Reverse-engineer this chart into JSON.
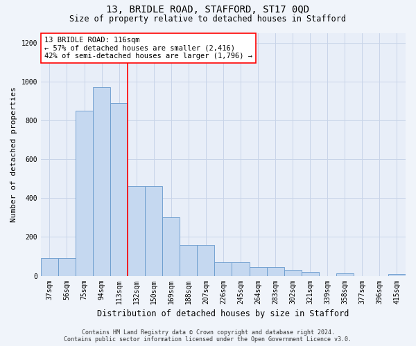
{
  "title": "13, BRIDLE ROAD, STAFFORD, ST17 0QD",
  "subtitle": "Size of property relative to detached houses in Stafford",
  "xlabel": "Distribution of detached houses by size in Stafford",
  "ylabel": "Number of detached properties",
  "categories": [
    "37sqm",
    "56sqm",
    "75sqm",
    "94sqm",
    "113sqm",
    "132sqm",
    "150sqm",
    "169sqm",
    "188sqm",
    "207sqm",
    "226sqm",
    "245sqm",
    "264sqm",
    "283sqm",
    "302sqm",
    "321sqm",
    "339sqm",
    "358sqm",
    "377sqm",
    "396sqm",
    "415sqm"
  ],
  "values": [
    90,
    90,
    850,
    970,
    890,
    460,
    460,
    300,
    160,
    160,
    68,
    68,
    45,
    45,
    30,
    20,
    0,
    12,
    0,
    0,
    10
  ],
  "bar_color": "#c5d8f0",
  "bar_edge_color": "#6699cc",
  "grid_color": "#c8d4e8",
  "vline_x_index": 4,
  "vline_color": "red",
  "annotation_text": "13 BRIDLE ROAD: 116sqm\n← 57% of detached houses are smaller (2,416)\n42% of semi-detached houses are larger (1,796) →",
  "annotation_box_color": "white",
  "annotation_box_edge": "red",
  "ylim": [
    0,
    1250
  ],
  "yticks": [
    0,
    200,
    400,
    600,
    800,
    1000,
    1200
  ],
  "footer_line1": "Contains HM Land Registry data © Crown copyright and database right 2024.",
  "footer_line2": "Contains public sector information licensed under the Open Government Licence v3.0.",
  "bg_color": "#f0f4fa",
  "plot_bg_color": "#e8eef8",
  "title_fontsize": 10,
  "subtitle_fontsize": 8.5,
  "xlabel_fontsize": 8.5,
  "ylabel_fontsize": 8,
  "tick_fontsize": 7,
  "annotation_fontsize": 7.5,
  "footer_fontsize": 6
}
